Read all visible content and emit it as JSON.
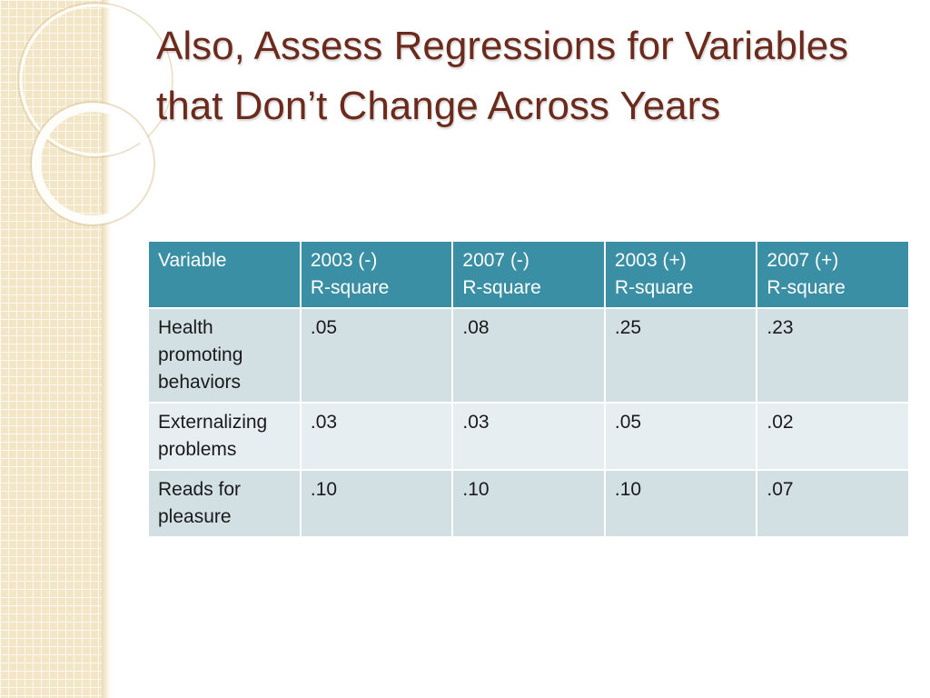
{
  "slide": {
    "title": "Also,  Assess Regressions for Variables that Don’t Change Across Years"
  },
  "table": {
    "headers": [
      {
        "line1": "Variable",
        "line2": ""
      },
      {
        "line1": "2003 (-)",
        "line2": "R-square"
      },
      {
        "line1": "2007 (-)",
        "line2": "R-square"
      },
      {
        "line1": "2003 (+)",
        "line2": "R-square"
      },
      {
        "line1": "2007 (+)",
        "line2": "R-square"
      }
    ],
    "rows": [
      {
        "variable": "Health promoting behaviors",
        "values": [
          ".05",
          ".08",
          ".25",
          ".23"
        ]
      },
      {
        "variable": "Externalizing problems",
        "values": [
          ".03",
          ".03",
          ".05",
          ".02"
        ]
      },
      {
        "variable": "Reads for pleasure",
        "values": [
          ".10",
          ".10",
          ".10",
          ".07"
        ]
      }
    ]
  },
  "colors": {
    "title": "#6b2a1c",
    "header_bg": "#3b8fa5",
    "row_bg": "#d2dfe3",
    "row_alt_bg": "#e7eef1",
    "side_strip": "#f2e6c7"
  }
}
